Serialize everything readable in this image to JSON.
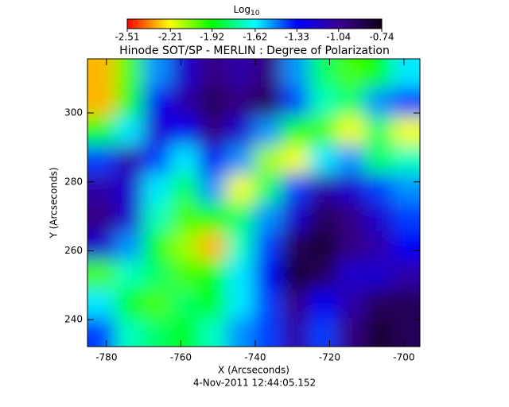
{
  "chart_data": {
    "type": "heatmap",
    "title": "Hinode SOT/SP - MERLIN : Degree of Polarization",
    "x_label": "X (Arcseconds)",
    "y_label": "Y (Arcseconds)",
    "footer": "4-Nov-2011 12:44:05.152",
    "colorbar_label": "Log",
    "colorbar_label_sub": "10",
    "xlim": [
      -785.1,
      -695.7
    ],
    "ylim": [
      232.2,
      315.7
    ],
    "xticks": [
      -780,
      -760,
      -740,
      -720,
      -700
    ],
    "yticks": [
      240,
      260,
      280,
      300
    ],
    "zlim": [
      -2.51,
      -0.74
    ],
    "colorbar_ticks": [
      -2.51,
      -2.21,
      -1.92,
      -1.62,
      -1.33,
      -1.04,
      -0.74
    ],
    "colormap": [
      "#ff0000",
      "#ffff00",
      "#00ff00",
      "#00ffff",
      "#0000ff",
      "#3a0090",
      "#100018"
    ],
    "z": [
      [
        -2.3,
        -2.0,
        -1.5,
        -1.2,
        -1.0,
        -1.1,
        -1.0,
        -1.5,
        -1.8,
        -2.0,
        -1.9,
        -1.6
      ],
      [
        -2.3,
        -1.9,
        -1.3,
        -1.1,
        -0.9,
        -1.0,
        -0.9,
        -1.4,
        -1.7,
        -1.8,
        -1.5,
        -1.4
      ],
      [
        -1.9,
        -1.6,
        -1.2,
        -1.3,
        -1.0,
        -1.2,
        -1.5,
        -1.9,
        -2.0,
        -2.2,
        -1.8,
        -2.2
      ],
      [
        -1.4,
        -1.1,
        -1.4,
        -1.6,
        -1.3,
        -1.5,
        -2.1,
        -2.2,
        -1.6,
        -1.5,
        -1.8,
        -1.7
      ],
      [
        -1.1,
        -1.2,
        -1.6,
        -1.8,
        -1.5,
        -2.2,
        -1.8,
        -1.4,
        -1.1,
        -1.2,
        -1.4,
        -1.5
      ],
      [
        -1.0,
        -1.2,
        -1.7,
        -2.0,
        -1.9,
        -1.8,
        -1.5,
        -1.2,
        -0.9,
        -1.0,
        -1.2,
        -1.4
      ],
      [
        -1.2,
        -1.5,
        -1.9,
        -2.1,
        -2.3,
        -1.7,
        -1.4,
        -0.9,
        -0.8,
        -1.0,
        -1.1,
        -1.3
      ],
      [
        -2.0,
        -1.7,
        -1.8,
        -2.0,
        -1.9,
        -1.6,
        -1.3,
        -0.8,
        -0.9,
        -1.2,
        -1.2,
        -1.1
      ],
      [
        -1.6,
        -1.9,
        -2.0,
        -1.8,
        -1.9,
        -1.6,
        -1.4,
        -1.0,
        -1.3,
        -1.1,
        -0.9,
        -0.9
      ],
      [
        -1.4,
        -1.7,
        -1.8,
        -1.9,
        -1.7,
        -1.5,
        -1.4,
        -1.1,
        -1.4,
        -1.0,
        -0.8,
        -0.9
      ]
    ]
  }
}
